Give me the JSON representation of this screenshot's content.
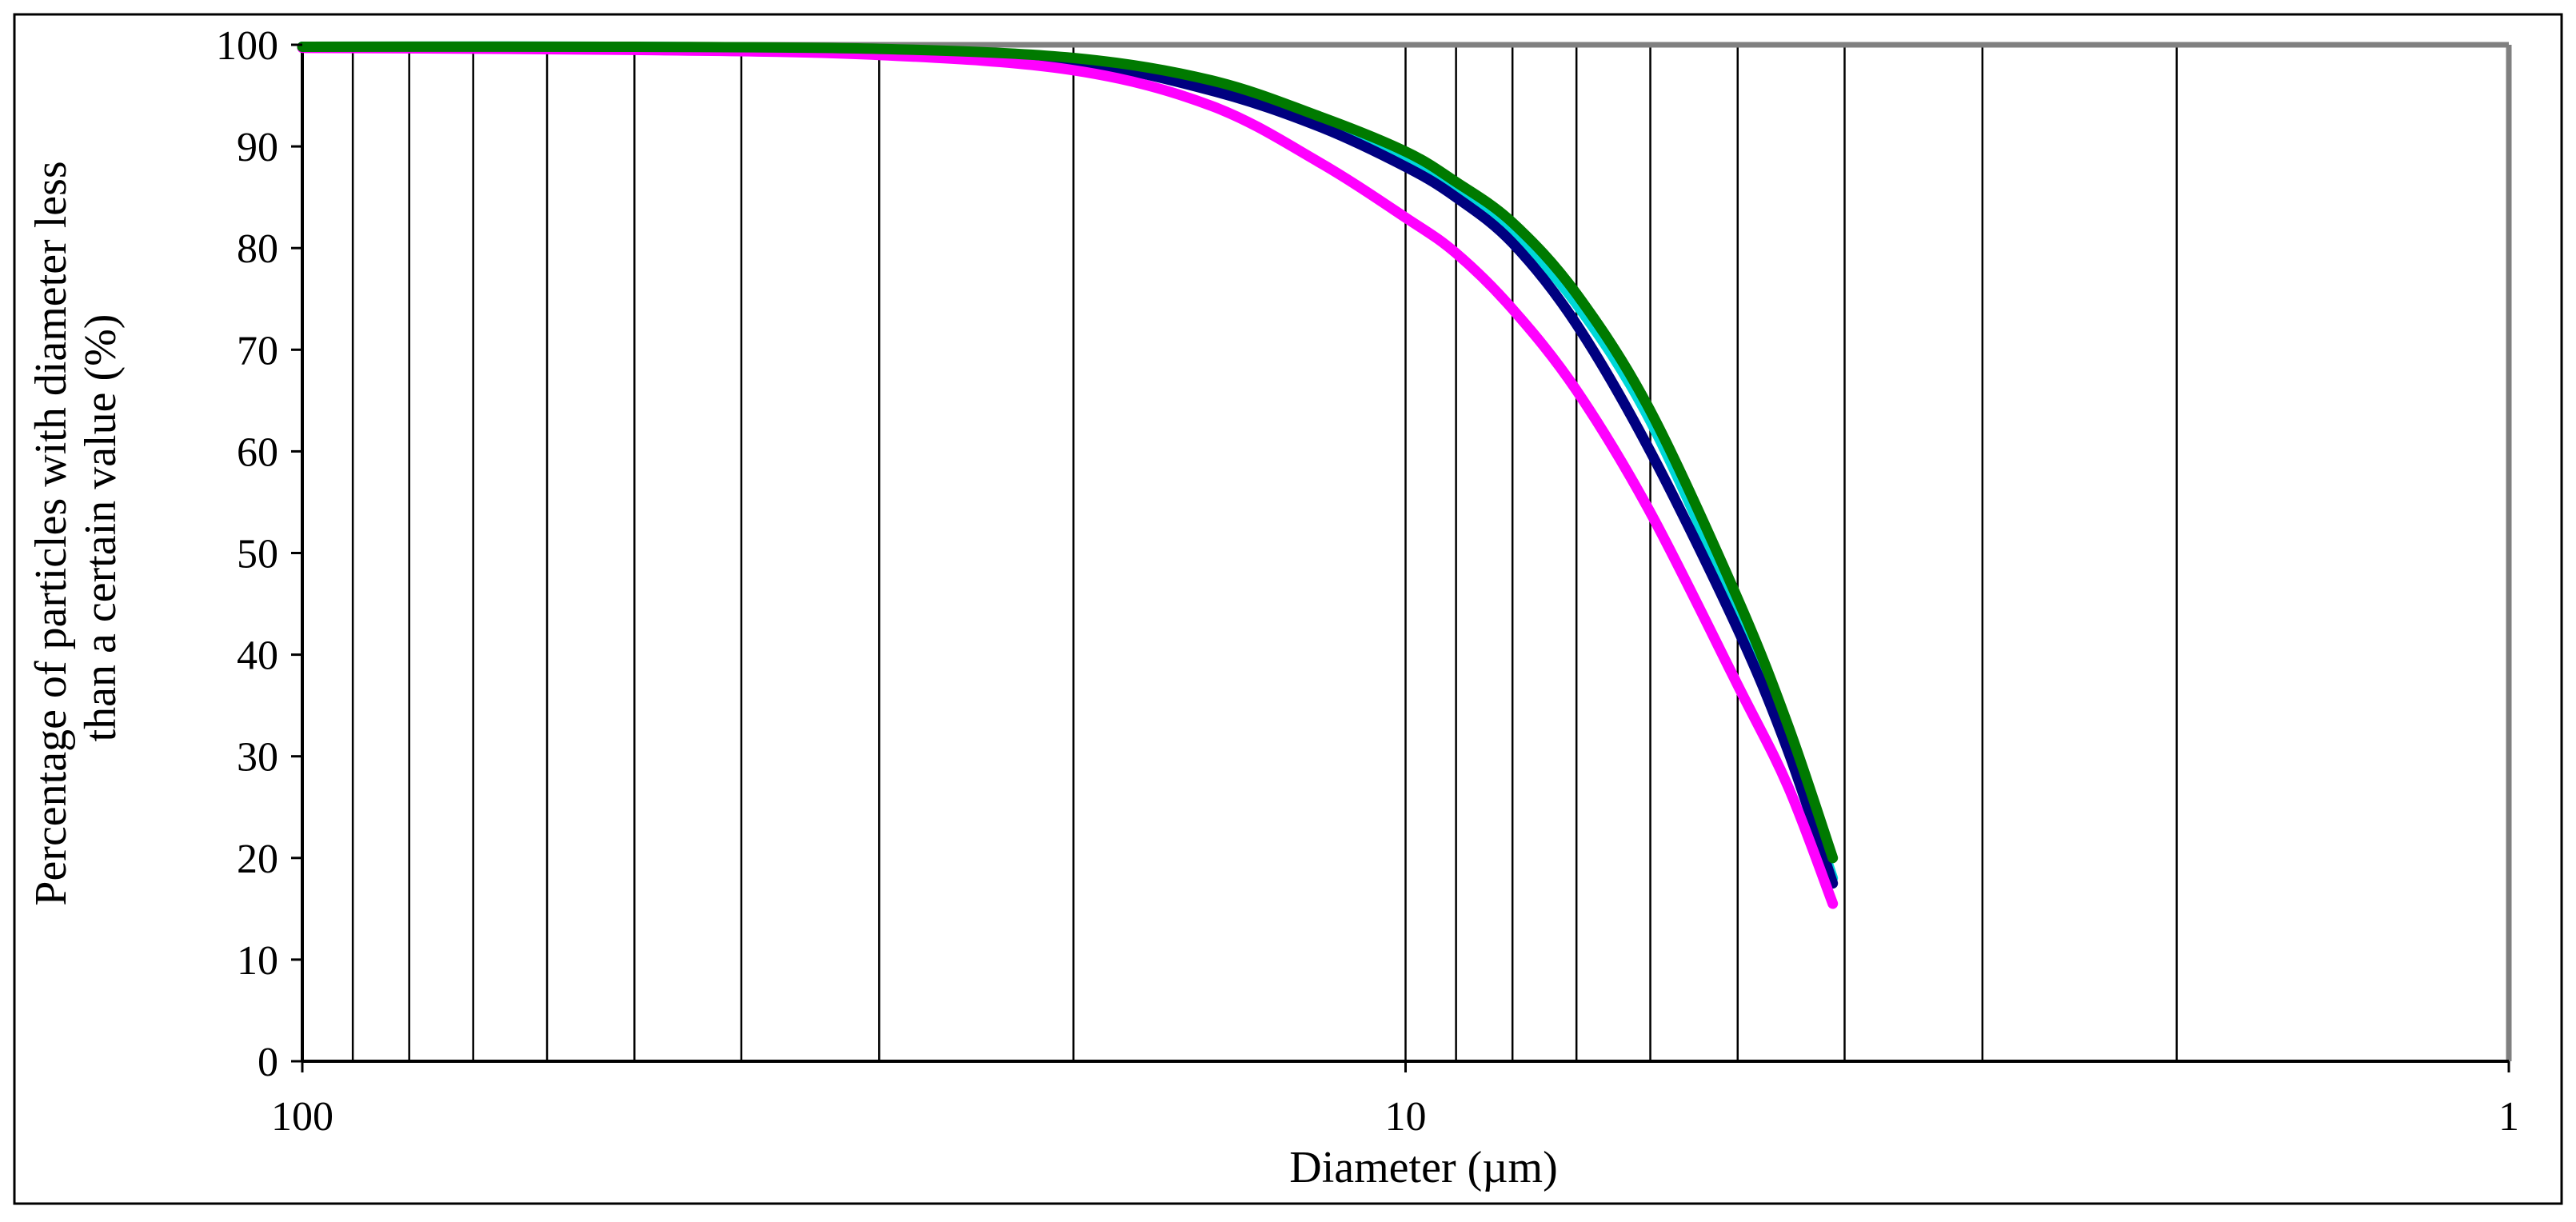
{
  "chart_data": {
    "type": "line",
    "xlabel": "Diameter (µm)",
    "ylabel_lines": [
      "Percentage of particles with diameter less",
      "than a certain value (%)"
    ],
    "x_scale": "log",
    "x_reversed": true,
    "xlim": [
      100,
      1
    ],
    "ylim": [
      0,
      100
    ],
    "x_ticks": [
      100,
      10,
      1
    ],
    "x_tick_labels": [
      "100",
      "10",
      "1"
    ],
    "y_ticks": [
      0,
      10,
      20,
      30,
      40,
      50,
      60,
      70,
      80,
      90,
      100
    ],
    "y_tick_labels": [
      "0",
      "10",
      "20",
      "30",
      "40",
      "50",
      "60",
      "70",
      "80",
      "90",
      "100"
    ],
    "x_gridlines": [
      90,
      80,
      70,
      60,
      50,
      40,
      30,
      20,
      10,
      9,
      8,
      7,
      6,
      5,
      4,
      3,
      2
    ],
    "legend": "none",
    "series": [
      {
        "color": "#00D8D8",
        "points": [
          [
            100,
            99.8
          ],
          [
            50,
            99.8
          ],
          [
            30,
            99.5
          ],
          [
            20,
            98.5
          ],
          [
            15,
            96
          ],
          [
            12,
            92.5
          ],
          [
            10,
            88.5
          ],
          [
            9,
            85.5
          ],
          [
            8,
            81.5
          ],
          [
            7,
            74.5
          ],
          [
            6,
            63
          ],
          [
            5,
            44
          ],
          [
            4.5,
            31
          ],
          [
            4.1,
            18
          ]
        ]
      },
      {
        "color": "#000080",
        "points": [
          [
            100,
            99.8
          ],
          [
            50,
            99.7
          ],
          [
            30,
            99.4
          ],
          [
            20,
            98.3
          ],
          [
            15,
            95.5
          ],
          [
            12,
            92
          ],
          [
            10,
            88
          ],
          [
            9,
            85
          ],
          [
            8,
            80.5
          ],
          [
            7,
            72.5
          ],
          [
            6,
            60
          ],
          [
            5,
            42.5
          ],
          [
            4.5,
            30.5
          ],
          [
            4.1,
            17.5
          ]
        ]
      },
      {
        "color": "#FF00FF",
        "points": [
          [
            100,
            99.7
          ],
          [
            50,
            99.5
          ],
          [
            30,
            99
          ],
          [
            20,
            97.5
          ],
          [
            15,
            94
          ],
          [
            12,
            88.5
          ],
          [
            10,
            83
          ],
          [
            9,
            79.5
          ],
          [
            8,
            74
          ],
          [
            7,
            66
          ],
          [
            6,
            54
          ],
          [
            5,
            37
          ],
          [
            4.5,
            27
          ],
          [
            4.1,
            15.5
          ]
        ]
      },
      {
        "color": "#007A00",
        "points": [
          [
            100,
            99.8
          ],
          [
            50,
            99.8
          ],
          [
            30,
            99.6
          ],
          [
            20,
            98.7
          ],
          [
            15,
            96.5
          ],
          [
            12,
            93
          ],
          [
            10,
            89.5
          ],
          [
            9,
            86.5
          ],
          [
            8,
            82.5
          ],
          [
            7,
            75.5
          ],
          [
            6,
            64
          ],
          [
            5,
            45.5
          ],
          [
            4.5,
            33
          ],
          [
            4.1,
            20
          ]
        ]
      }
    ]
  }
}
